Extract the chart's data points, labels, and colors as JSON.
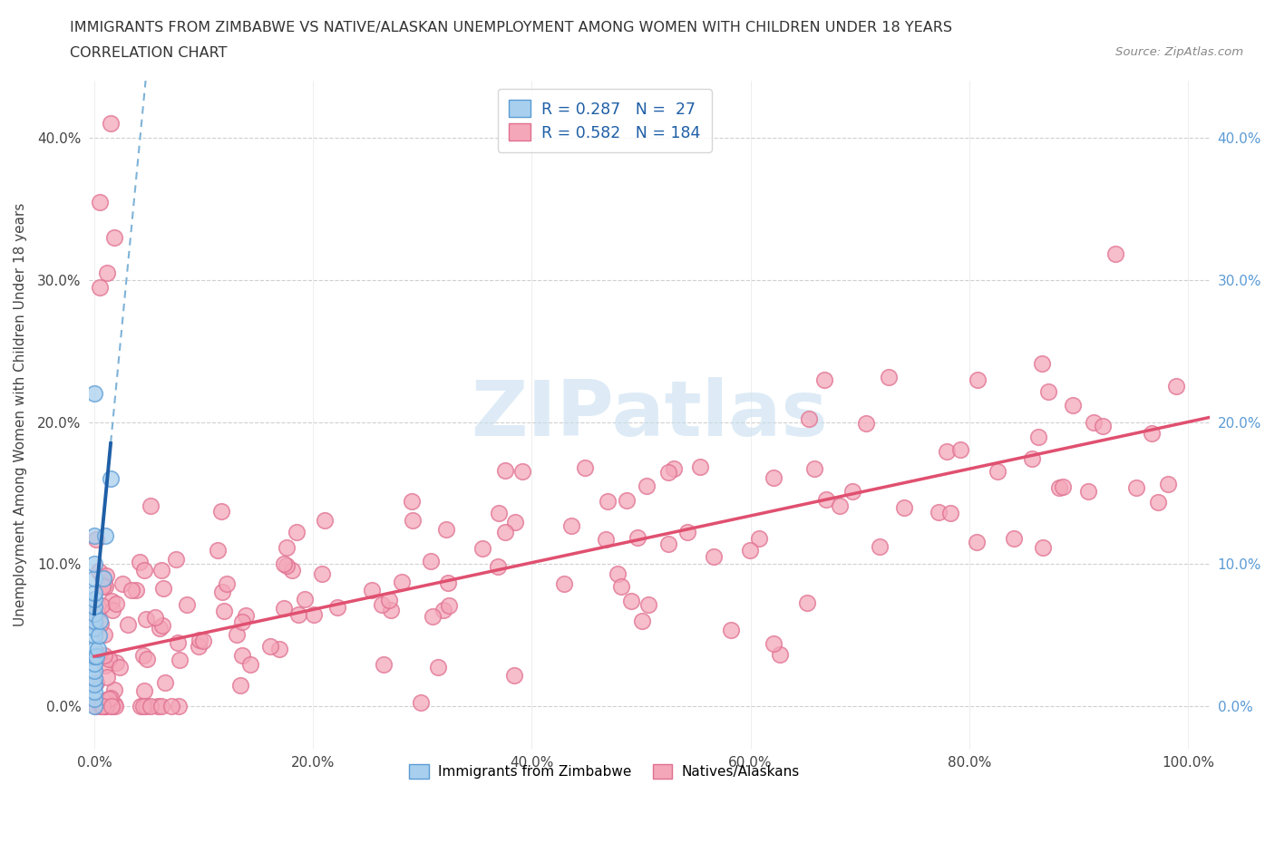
{
  "title_line1": "IMMIGRANTS FROM ZIMBABWE VS NATIVE/ALASKAN UNEMPLOYMENT AMONG WOMEN WITH CHILDREN UNDER 18 YEARS",
  "title_line2": "CORRELATION CHART",
  "source_text": "Source: ZipAtlas.com",
  "ylabel": "Unemployment Among Women with Children Under 18 years",
  "xlim": [
    -0.005,
    1.02
  ],
  "ylim": [
    -0.03,
    0.44
  ],
  "x_ticks": [
    0.0,
    0.2,
    0.4,
    0.6,
    0.8,
    1.0
  ],
  "x_tick_labels": [
    "0.0%",
    "20.0%",
    "40.0%",
    "60.0%",
    "80.0%",
    "100.0%"
  ],
  "y_ticks": [
    0.0,
    0.1,
    0.2,
    0.3,
    0.4
  ],
  "y_tick_labels": [
    "0.0%",
    "10.0%",
    "20.0%",
    "30.0%",
    "40.0%"
  ],
  "color_blue_fill": "#a8d0ee",
  "color_blue_edge": "#5b9bd5",
  "color_pink_fill": "#f4a7b9",
  "color_pink_edge": "#e07090",
  "color_blue_line_solid": "#1f5fa6",
  "color_blue_line_dash": "#7fb3d8",
  "color_pink_line": "#e05070",
  "legend_label1": "Immigrants from Zimbabwe",
  "legend_label2": "Natives/Alaskans",
  "zim_x": [
    0.0,
    0.0,
    0.0,
    0.0,
    0.0,
    0.0,
    0.0,
    0.0,
    0.0,
    0.0,
    0.0,
    0.0,
    0.0,
    0.0,
    0.0,
    0.0,
    0.0,
    0.0,
    0.0,
    0.0,
    0.002,
    0.003,
    0.004,
    0.005,
    0.008,
    0.01,
    0.015
  ],
  "zim_y": [
    0.0,
    0.005,
    0.01,
    0.015,
    0.02,
    0.025,
    0.03,
    0.035,
    0.04,
    0.05,
    0.055,
    0.06,
    0.065,
    0.07,
    0.075,
    0.08,
    0.09,
    0.1,
    0.12,
    0.22,
    0.035,
    0.04,
    0.05,
    0.06,
    0.09,
    0.12,
    0.16
  ],
  "watermark_text": "ZIPatlas",
  "watermark_color": "#c8dff0",
  "watermark_alpha": 0.6
}
